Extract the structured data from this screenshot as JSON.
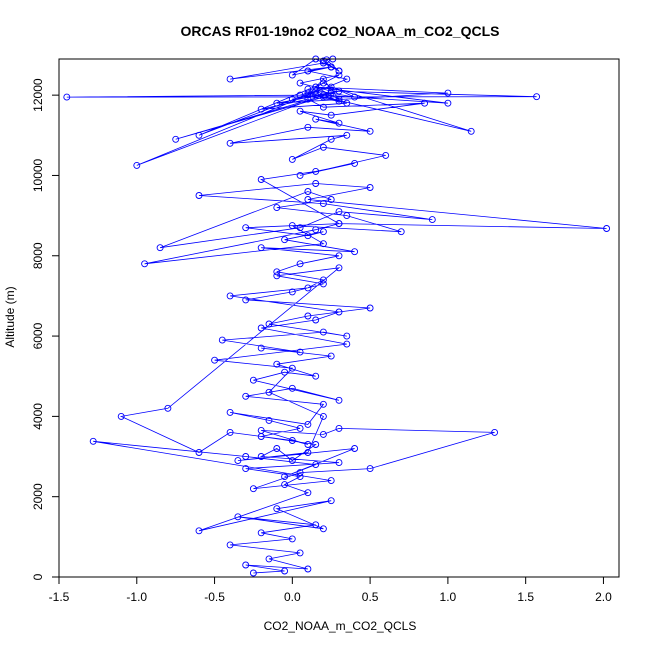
{
  "chart_data": {
    "type": "line",
    "title": "ORCAS RF01-19no2 CO2_NOAA_m_CO2_QCLS",
    "xlabel": "CO2_NOAA_m_CO2_QCLS",
    "ylabel": "Altitude (m)",
    "xlim": [
      -1.5,
      2.1
    ],
    "ylim": [
      0,
      12900
    ],
    "x_ticks": [
      -1.5,
      -1.0,
      -0.5,
      0.0,
      0.5,
      1.0,
      1.5,
      2.0
    ],
    "x_tick_labels": [
      "-1.5",
      "-1.0",
      "-0.5",
      "0.0",
      "0.5",
      "1.0",
      "1.5",
      "2.0"
    ],
    "y_ticks": [
      0,
      2000,
      4000,
      6000,
      8000,
      10000,
      12000
    ],
    "y_tick_labels": [
      "0",
      "2000",
      "4000",
      "6000",
      "8000",
      "10000",
      "12000"
    ],
    "grid": false,
    "marker": "open-circle",
    "series": [
      {
        "name": "CO2_NOAA_m_CO2_QCLS",
        "color": "#0000ff",
        "x": [
          -0.25,
          -0.05,
          -0.3,
          0.1,
          -0.15,
          0.05,
          -0.4,
          0.0,
          -0.2,
          0.15,
          -0.35,
          0.2,
          -0.1,
          0.25,
          -0.6,
          0.1,
          -0.05,
          0.05,
          -0.3,
          0.3,
          -0.2,
          -0.1,
          0.0,
          0.15,
          -0.2,
          0.05,
          -0.15,
          -0.4,
          0.1,
          0.2,
          -0.3,
          0.0,
          0.3,
          -0.25,
          -0.05,
          0.15,
          -0.1,
          0.25,
          -0.2,
          0.05,
          -0.45,
          0.2,
          0.35,
          -0.15,
          0.1,
          0.5,
          -0.3,
          0.0,
          0.2,
          -0.1,
          0.3,
          -0.8,
          -1.1,
          -0.6,
          -0.4,
          0.0,
          0.1,
          -0.2,
          0.2,
          0.3,
          1.3,
          0.5,
          0.05,
          -0.25,
          0.25,
          -1.28,
          -0.3,
          0.15,
          -0.05,
          0.4,
          -0.35,
          0.1,
          0.2,
          -0.15,
          0.0,
          -0.5,
          0.35,
          -0.2,
          0.15,
          0.3,
          -0.4,
          0.1,
          0.2,
          -0.1,
          0.05,
          0.3,
          -0.2,
          0.4,
          -0.05,
          0.2,
          0.1,
          -0.3,
          0.3,
          0.15,
          -0.95,
          0.2,
          0.0,
          0.7,
          0.35,
          -0.1,
          0.25,
          0.1,
          -0.85,
          0.05,
          0.3,
          0.9,
          0.2,
          -0.6,
          0.15,
          0.5,
          0.1,
          2.02,
          0.3,
          -0.2,
          0.15,
          0.4,
          0.05,
          0.6,
          0.2,
          0.0,
          0.25,
          0.35,
          -0.4,
          0.1,
          0.5,
          0.15,
          0.3,
          0.05,
          0.25,
          0.85,
          0.2,
          0.1,
          -0.2,
          0.35,
          0.15,
          0.0,
          0.3,
          -0.75,
          0.2,
          0.1,
          1.15,
          0.25,
          0.05,
          0.3,
          0.15,
          -0.6,
          0.2,
          0.4,
          0.1,
          0.25,
          -0.1,
          1.0,
          0.15,
          0.3,
          0.2,
          0.1,
          -1.45,
          1.57,
          0.25,
          0.05,
          0.3,
          0.15,
          1.0,
          0.2,
          -1.0,
          0.35,
          0.1,
          0.25,
          -0.4,
          0.2,
          0.3,
          0.15,
          0.0,
          0.25,
          0.2,
          0.3,
          0.22,
          0.26
        ],
        "y": [
          100,
          150,
          300,
          200,
          450,
          600,
          800,
          950,
          1100,
          1300,
          1500,
          1200,
          1700,
          1900,
          1150,
          2100,
          2300,
          2500,
          2700,
          2850,
          3000,
          3200,
          2900,
          3300,
          3500,
          3700,
          3900,
          4100,
          3800,
          4300,
          4500,
          4700,
          4400,
          4900,
          5100,
          5000,
          5300,
          5500,
          5700,
          5600,
          5900,
          6100,
          6000,
          6300,
          6500,
          6700,
          6900,
          7100,
          7300,
          7500,
          7700,
          4200,
          4000,
          3100,
          3600,
          3400,
          3300,
          3650,
          3550,
          3700,
          3600,
          2700,
          2600,
          2200,
          2400,
          3380,
          3000,
          2800,
          2500,
          3200,
          2900,
          3100,
          4000,
          4600,
          5200,
          5400,
          5800,
          6200,
          6400,
          6600,
          7000,
          7200,
          7400,
          7600,
          7800,
          8000,
          8200,
          8100,
          8400,
          8600,
          8500,
          8700,
          8800,
          8650,
          7800,
          8300,
          8750,
          8600,
          9000,
          9200,
          9400,
          9600,
          8200,
          8700,
          9100,
          8900,
          9300,
          9500,
          9800,
          9700,
          9400,
          8680,
          8800,
          9900,
          10100,
          10300,
          10000,
          10500,
          10700,
          10400,
          10900,
          11000,
          10800,
          11200,
          11100,
          11400,
          11300,
          11600,
          11500,
          11800,
          11700,
          11900,
          11650,
          11800,
          12000,
          11900,
          12100,
          10900,
          11950,
          12050,
          11100,
          12200,
          12000,
          11850,
          12100,
          11000,
          12300,
          11950,
          12150,
          12050,
          11800,
          12050,
          12200,
          11900,
          12400,
          12000,
          11950,
          11960,
          12100,
          12300,
          12500,
          12200,
          11800,
          12000,
          10250,
          12400,
          12600,
          12700,
          12400,
          12800,
          12600,
          12900,
          12500,
          12700,
          12850,
          12600,
          12880,
          12900
        ]
      }
    ]
  }
}
